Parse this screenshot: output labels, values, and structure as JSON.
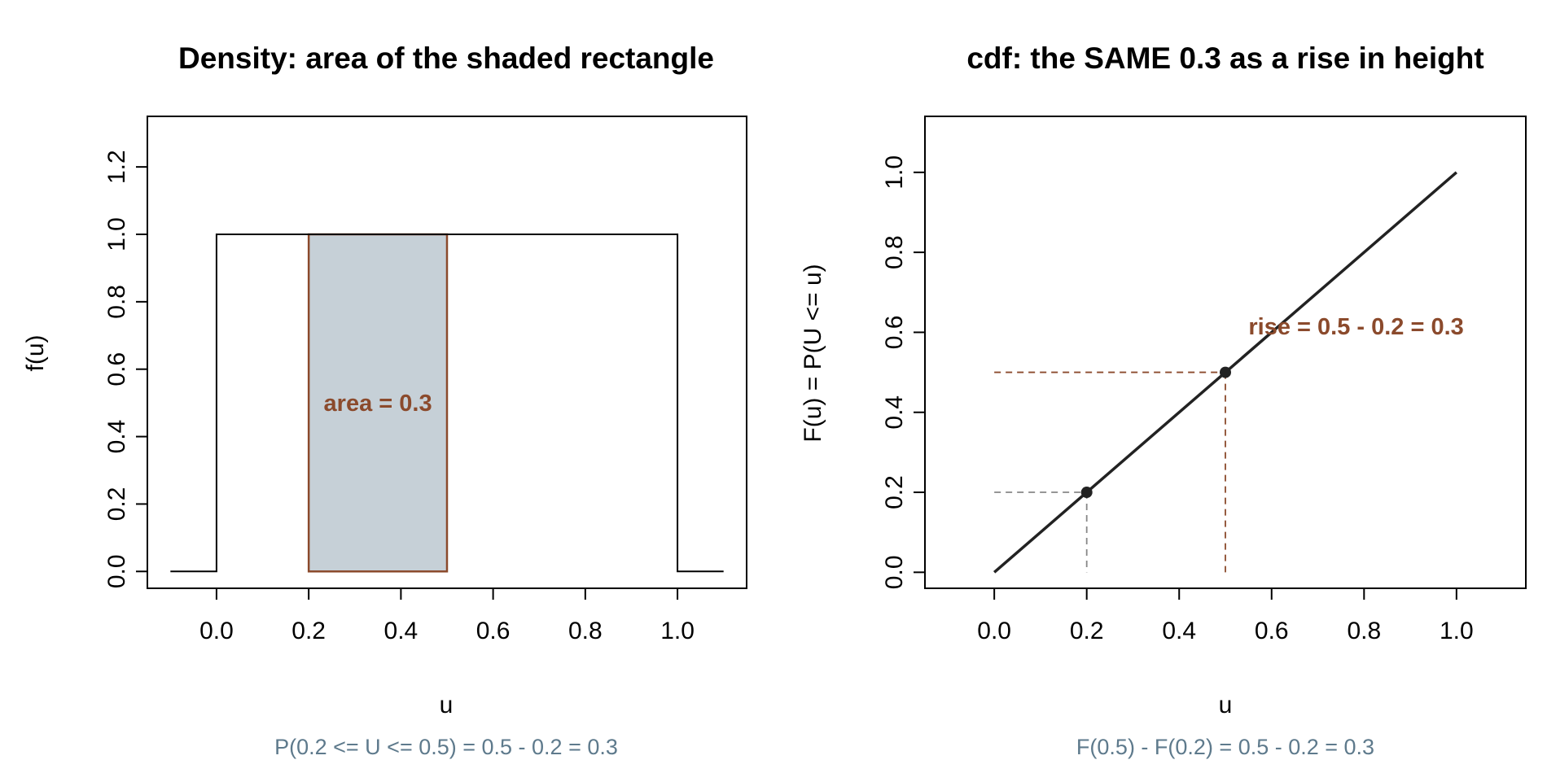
{
  "colors": {
    "accent": "#8b4a2c",
    "fill": "#c6d0d7",
    "subtitle": "#5e7a8c",
    "guide_grey": "#888888",
    "line": "#222222"
  },
  "chart_data": [
    {
      "type": "line",
      "title": "Density: area of the shaded rectangle",
      "xlabel": "u",
      "ylabel": "f(u)",
      "subtitle": "P(0.2 <= U <= 0.5) = 0.5 - 0.2 = 0.3",
      "xlim": [
        -0.15,
        1.15
      ],
      "ylim": [
        -0.05,
        1.35
      ],
      "xticks": [
        0.0,
        0.2,
        0.4,
        0.6,
        0.8,
        1.0
      ],
      "xtick_labels": [
        "0.0",
        "0.2",
        "0.4",
        "0.6",
        "0.8",
        "1.0"
      ],
      "yticks": [
        0.0,
        0.2,
        0.4,
        0.6,
        0.8,
        1.0,
        1.2
      ],
      "ytick_labels": [
        "0.0",
        "0.2",
        "0.4",
        "0.6",
        "0.8",
        "1.0",
        "1.2"
      ],
      "series": [
        {
          "x": [
            -0.1,
            0.0,
            0.0,
            1.0,
            1.0,
            1.1
          ],
          "y": [
            0,
            0,
            1,
            1,
            0,
            0
          ]
        }
      ],
      "shaded_rect": {
        "x0": 0.2,
        "x1": 0.5,
        "y0": 0,
        "y1": 1
      },
      "annotations": [
        {
          "text": "area = 0.3",
          "x": 0.35,
          "y": 0.5
        }
      ],
      "grid": false
    },
    {
      "type": "line",
      "title": "cdf: the SAME 0.3 as a rise in height",
      "xlabel": "u",
      "ylabel": "F(u) = P(U <= u)",
      "subtitle": "F(0.5) - F(0.2) = 0.5 - 0.2 = 0.3",
      "xlim": [
        -0.15,
        1.15
      ],
      "ylim": [
        -0.04,
        1.14
      ],
      "xticks": [
        0.0,
        0.2,
        0.4,
        0.6,
        0.8,
        1.0
      ],
      "xtick_labels": [
        "0.0",
        "0.2",
        "0.4",
        "0.6",
        "0.8",
        "1.0"
      ],
      "yticks": [
        0.0,
        0.2,
        0.4,
        0.6,
        0.8,
        1.0
      ],
      "ytick_labels": [
        "0.0",
        "0.2",
        "0.4",
        "0.6",
        "0.8",
        "1.0"
      ],
      "series": [
        {
          "x": [
            0,
            1
          ],
          "y": [
            0,
            1
          ]
        }
      ],
      "points": [
        {
          "x": 0.2,
          "y": 0.2
        },
        {
          "x": 0.5,
          "y": 0.5
        }
      ],
      "guides": [
        {
          "x": 0.2,
          "y": 0.2,
          "color": "grey"
        },
        {
          "x": 0.5,
          "y": 0.5,
          "color": "accent"
        }
      ],
      "annotations": [
        {
          "text": "rise = 0.5 - 0.2 = 0.3",
          "x": 0.55,
          "y": 0.615
        }
      ],
      "grid": false
    }
  ]
}
